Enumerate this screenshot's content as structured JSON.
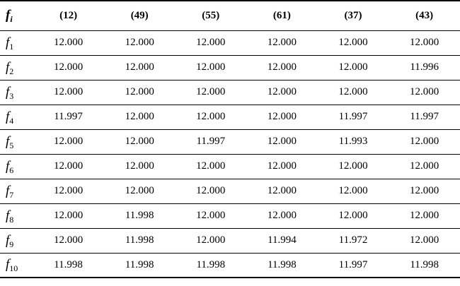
{
  "table": {
    "header": {
      "label": "f",
      "label_sub": "i",
      "cols": [
        "(12)",
        "(49)",
        "(55)",
        "(61)",
        "(37)",
        "(43)"
      ]
    },
    "rows": [
      {
        "label": "f",
        "sub": "1",
        "values": [
          "12.000",
          "12.000",
          "12.000",
          "12.000",
          "12.000",
          "12.000"
        ]
      },
      {
        "label": "f",
        "sub": "2",
        "values": [
          "12.000",
          "12.000",
          "12.000",
          "12.000",
          "12.000",
          "11.996"
        ]
      },
      {
        "label": "f",
        "sub": "3",
        "values": [
          "12.000",
          "12.000",
          "12.000",
          "12.000",
          "12.000",
          "12.000"
        ]
      },
      {
        "label": "f",
        "sub": "4",
        "values": [
          "11.997",
          "12.000",
          "12.000",
          "12.000",
          "11.997",
          "11.997"
        ]
      },
      {
        "label": "f",
        "sub": "5",
        "values": [
          "12.000",
          "12.000",
          "11.997",
          "12.000",
          "11.993",
          "12.000"
        ]
      },
      {
        "label": "f",
        "sub": "6",
        "values": [
          "12.000",
          "12.000",
          "12.000",
          "12.000",
          "12.000",
          "12.000"
        ]
      },
      {
        "label": "f",
        "sub": "7",
        "values": [
          "12.000",
          "12.000",
          "12.000",
          "12.000",
          "12.000",
          "12.000"
        ]
      },
      {
        "label": "f",
        "sub": "8",
        "values": [
          "12.000",
          "11.998",
          "12.000",
          "12.000",
          "12.000",
          "12.000"
        ]
      },
      {
        "label": "f",
        "sub": "9",
        "values": [
          "12.000",
          "11.998",
          "12.000",
          "11.994",
          "11.972",
          "12.000"
        ]
      },
      {
        "label": "f",
        "sub": "10",
        "values": [
          "11.998",
          "11.998",
          "11.998",
          "11.998",
          "11.997",
          "11.998"
        ]
      }
    ]
  }
}
